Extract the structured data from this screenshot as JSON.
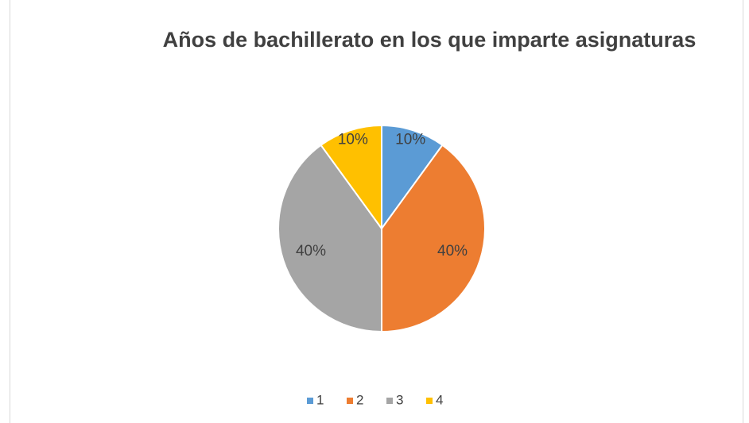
{
  "chart_data": {
    "type": "pie",
    "title": "Años de bachillerato en los que imparte asignaturas",
    "categories": [
      "1",
      "2",
      "3",
      "4"
    ],
    "values": [
      10,
      40,
      40,
      10
    ],
    "value_labels": [
      "10%",
      "40%",
      "40%",
      "10%"
    ],
    "colors": [
      "#5b9bd5",
      "#ed7d31",
      "#a5a5a5",
      "#ffc000"
    ],
    "legend": "bottom"
  }
}
